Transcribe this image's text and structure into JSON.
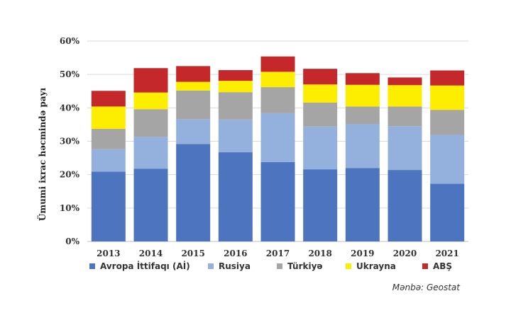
{
  "chart_data": {
    "type": "bar",
    "stacked": true,
    "title": "",
    "xlabel": "",
    "ylabel": "Ümumi ixrac həcmində payı",
    "ylim": [
      0,
      60
    ],
    "yticks": [
      0,
      10,
      20,
      30,
      40,
      50,
      60
    ],
    "ytick_labels": [
      "0%",
      "10%",
      "20%",
      "30%",
      "40%",
      "50%",
      "60%"
    ],
    "categories": [
      "2013",
      "2014",
      "2015",
      "2016",
      "2017",
      "2018",
      "2019",
      "2020",
      "2021"
    ],
    "series": [
      {
        "name": "Avropa İttifaqı (Aİ)",
        "color": "#4d74be",
        "values": [
          20.9,
          21.8,
          29.2,
          26.7,
          23.8,
          21.6,
          22.0,
          21.4,
          17.3
        ]
      },
      {
        "name": "Rusiya",
        "color": "#94b1de",
        "values": [
          6.7,
          9.5,
          7.4,
          9.8,
          14.6,
          12.8,
          13.1,
          13.1,
          14.6
        ]
      },
      {
        "name": "Türkiyə",
        "color": "#a5a5a5",
        "values": [
          6.1,
          8.3,
          8.6,
          8.2,
          7.8,
          7.2,
          5.3,
          5.9,
          7.5
        ]
      },
      {
        "name": "Ukrayna",
        "color": "#fdee00",
        "values": [
          6.7,
          5.0,
          2.6,
          3.4,
          4.6,
          5.4,
          6.5,
          6.4,
          7.3
        ]
      },
      {
        "name": "ABŞ",
        "color": "#c5282a",
        "values": [
          4.7,
          7.3,
          4.7,
          3.2,
          4.6,
          4.7,
          3.5,
          2.3,
          4.5
        ]
      }
    ],
    "grid": true,
    "legend": "bottom"
  },
  "source": "Mənbə: Geostat"
}
